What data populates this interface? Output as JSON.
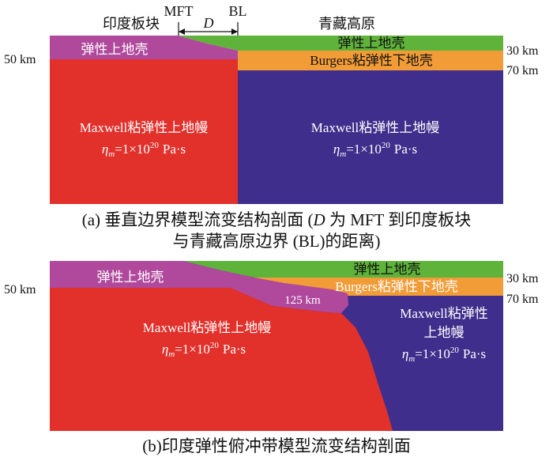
{
  "colors": {
    "india_upper_crust": "#b0489c",
    "tibet_upper_crust": "#5fb33b",
    "tibet_lower_crust": "#f29c37",
    "india_mantle": "#e2302b",
    "tibet_mantle": "#3f2e8b",
    "arrow": "#111111"
  },
  "panel_a": {
    "top_labels": {
      "india_plate": "印度板块",
      "mft": "MFT",
      "distance": "D",
      "bl": "BL",
      "tibet_plateau": "青藏高原"
    },
    "depth_labels": {
      "left_50km": "50 km",
      "right_30km": "30 km",
      "right_70km": "70 km"
    },
    "india_upper_crust_label": "弹性上地壳",
    "tibet_upper_crust_label": "弹性上地壳",
    "tibet_lower_crust_label": "Burgers粘弹性下地壳",
    "india_mantle": {
      "name": "Maxwell粘弹性上地幔",
      "viscosity": {
        "symbol": "η",
        "subscript": "m",
        "value": "=1×10",
        "exponent": "20",
        "unit": "Pa·s"
      }
    },
    "tibet_mantle": {
      "name": "Maxwell粘弹性上地幔",
      "viscosity": {
        "symbol": "η",
        "subscript": "m",
        "value": "=1×10",
        "exponent": "20",
        "unit": "Pa·s"
      }
    },
    "caption": {
      "line1_prefix": "(a) 垂直边界模型流变结构剖面 (",
      "line1_symbol": "D",
      "line1_suffix": " 为 MFT 到印度板块",
      "line2": "与青藏高原边界 (BL)的距离)"
    }
  },
  "panel_b": {
    "depth_labels": {
      "left_50km": "50 km",
      "right_30km": "30 km",
      "right_70km": "70 km"
    },
    "india_upper_crust_label": "弹性上地壳",
    "tibet_upper_crust_label": "弹性上地壳",
    "tibet_lower_crust_label": "Burgers粘弹性下地壳",
    "slab_depth_label": "125 km",
    "india_mantle": {
      "name": "Maxwell粘弹性上地幔",
      "viscosity": {
        "symbol": "η",
        "subscript": "m",
        "value": "=1×10",
        "exponent": "20",
        "unit": "Pa·s"
      }
    },
    "tibet_mantle": {
      "name_line1": "Maxwell粘弹性",
      "name_line2": "上地幔",
      "viscosity": {
        "symbol": "η",
        "subscript": "m",
        "value": "=1×10",
        "exponent": "20",
        "unit": "Pa·s"
      }
    },
    "caption": "(b)印度弹性俯冲带模型流变结构剖面"
  }
}
